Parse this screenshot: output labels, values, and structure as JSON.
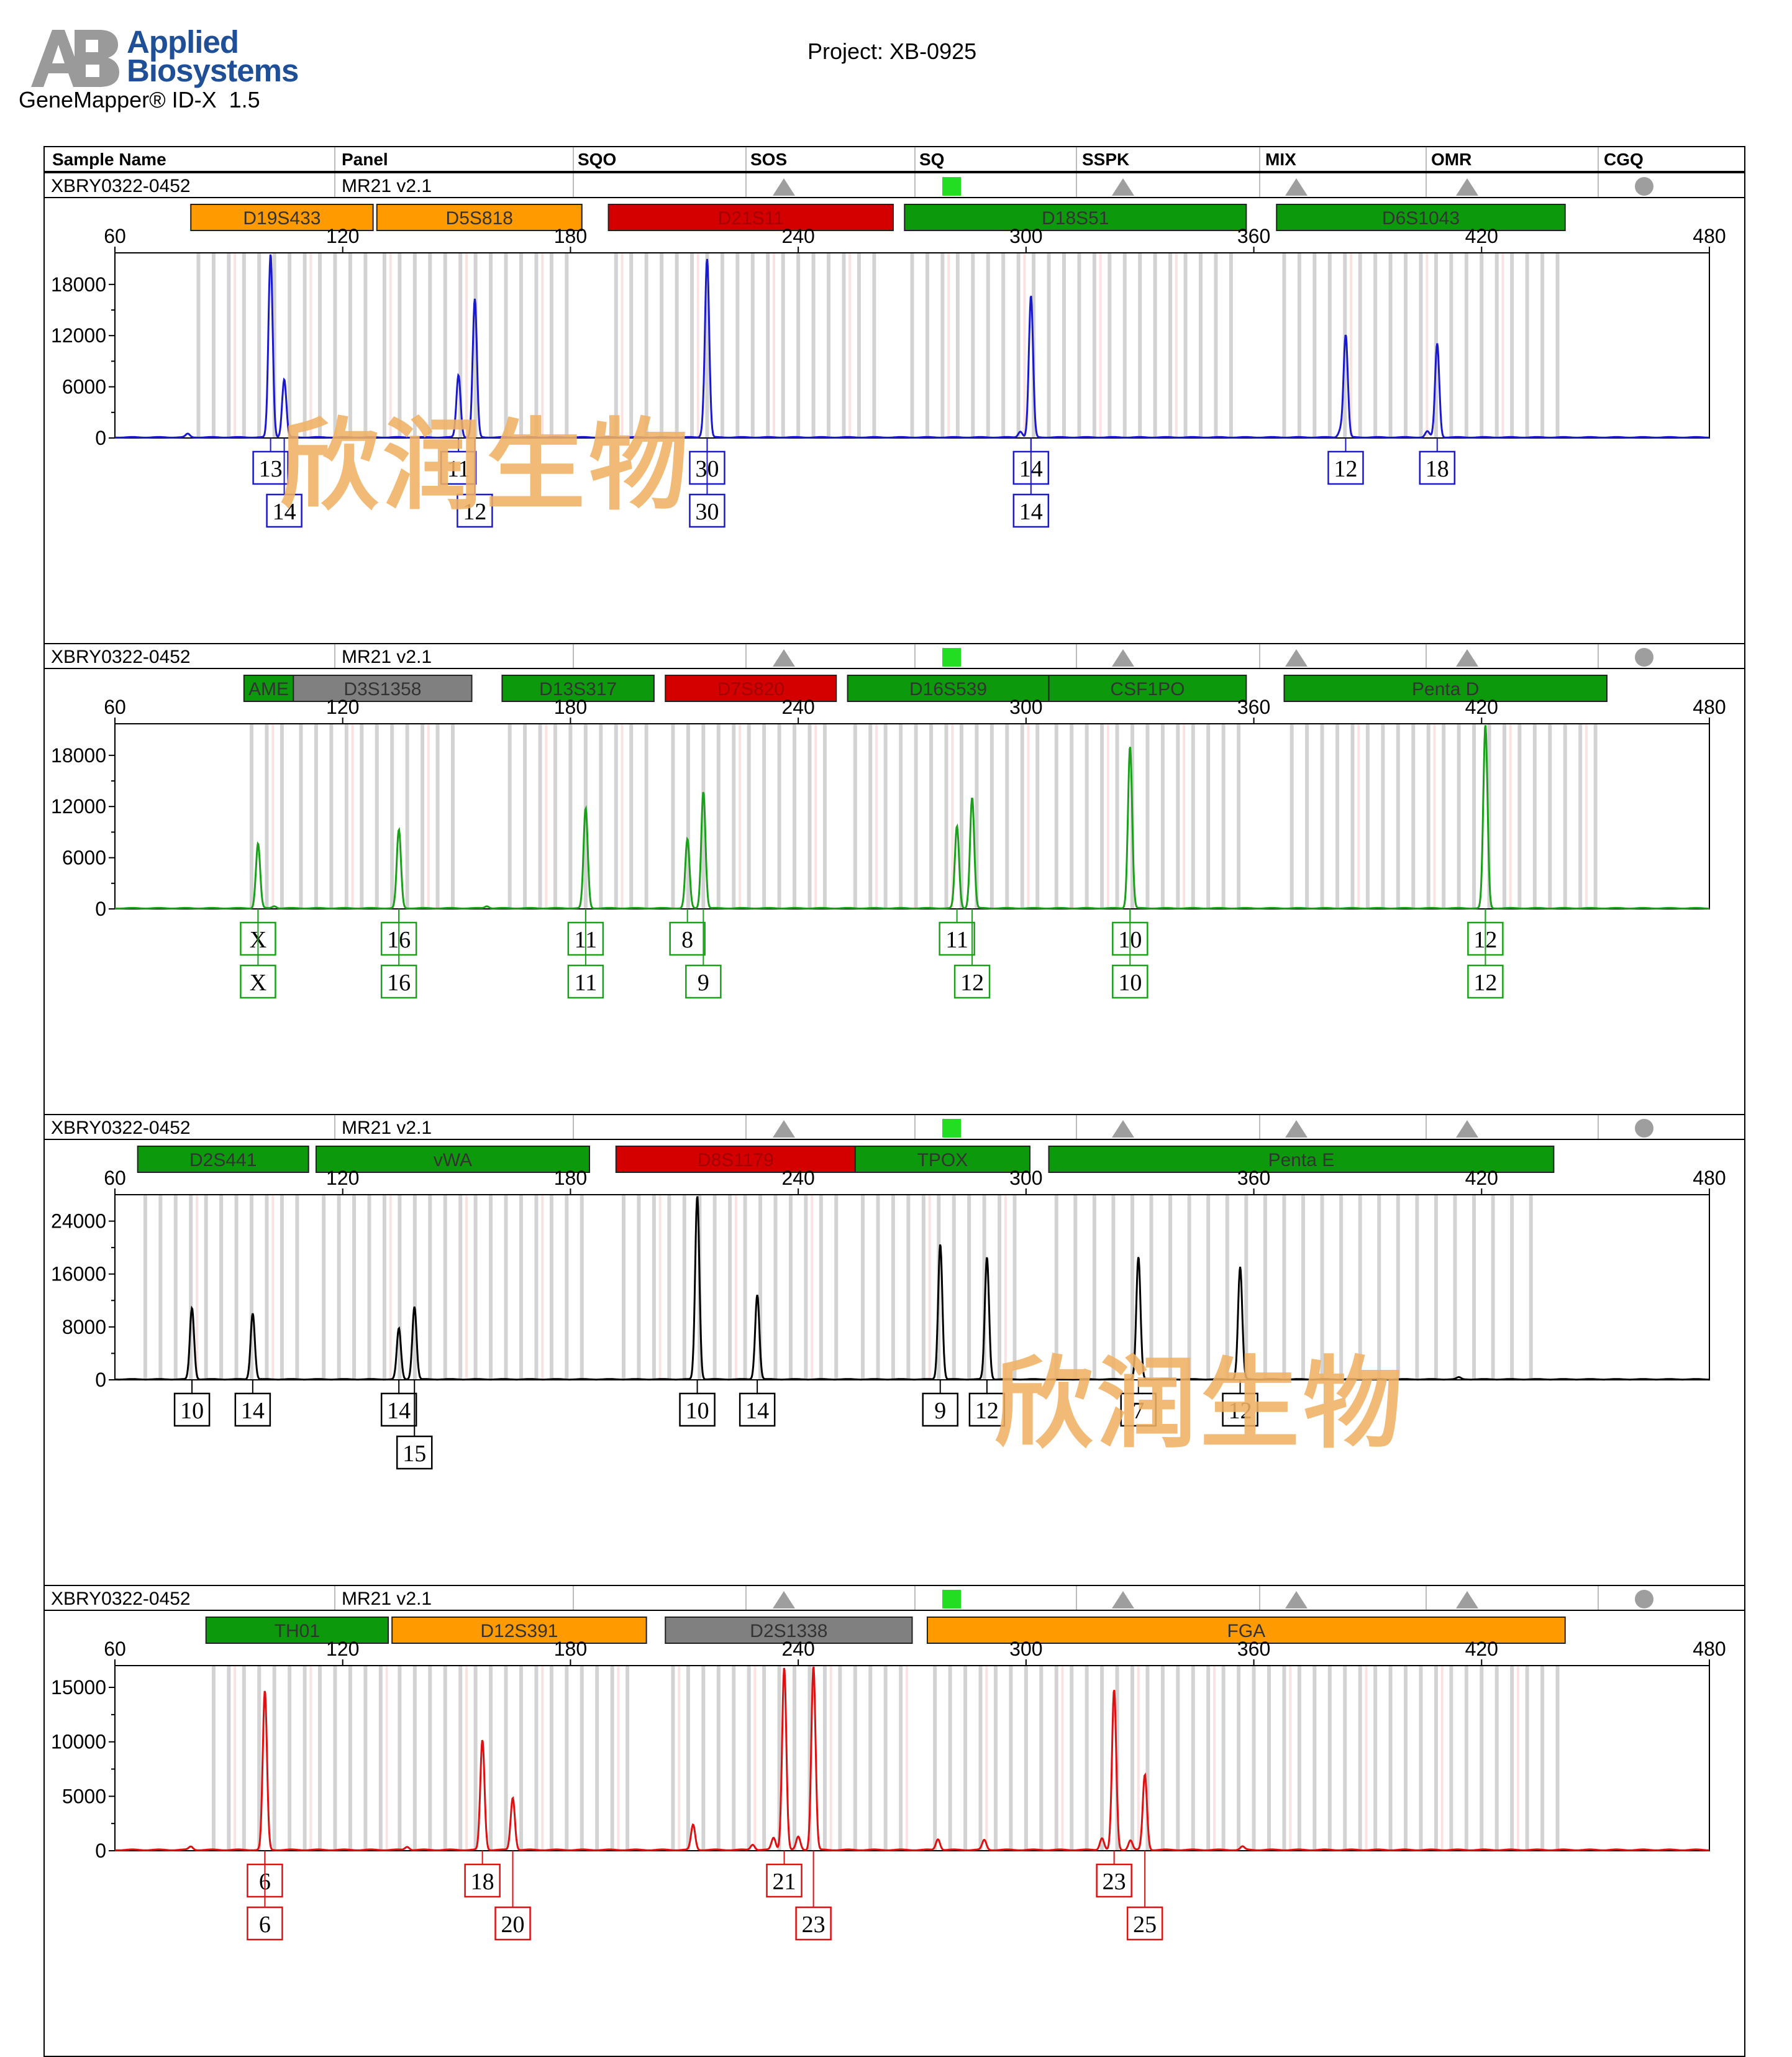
{
  "header": {
    "brand_line1": "Applied",
    "brand_line2": "Biosystems",
    "software": "GeneMapper® ID-X  1.5",
    "project": "Project: XB-0925"
  },
  "columns": [
    "Sample Name",
    "Panel",
    "SQO",
    "SOS",
    "SQ",
    "SSPK",
    "MIX",
    "OMR",
    "CGQ"
  ],
  "quality_flags": {
    "SOS": "grey-triangle",
    "SQ": "green-square",
    "SSPK": "grey-triangle",
    "MIX": "grey-triangle",
    "OMR": "grey-triangle",
    "CGQ": "grey-circle"
  },
  "watermark": "欣润生物",
  "colors": {
    "blue": "#1a1acc",
    "green": "#1aa01a",
    "black": "#000000",
    "red": "#dd1111",
    "marker_orange": "#ff9a00",
    "marker_red": "#d40000",
    "marker_green": "#0c990c",
    "marker_grey": "#808080",
    "bin_grey": "#d3d3d3",
    "bin_pink": "#fbe2e2",
    "flag_green": "#22dd22",
    "flag_grey": "#9e9e9e"
  },
  "chart_data": [
    {
      "type": "line",
      "dye": "blue",
      "sample_name": "XBRY0322-0452",
      "panel": "MR21_v2.1",
      "xlabel": "",
      "ylabel": "",
      "x_range": [
        60,
        480
      ],
      "x_ticks": [
        60,
        120,
        180,
        240,
        300,
        360,
        420,
        480
      ],
      "y_range": [
        0,
        21700
      ],
      "y_ticks": [
        0,
        6000,
        12000,
        18000
      ],
      "markers": [
        {
          "name": "D19S433",
          "color": "orange",
          "start": 80,
          "end": 128
        },
        {
          "name": "D5S818",
          "color": "orange",
          "start": 129,
          "end": 183
        },
        {
          "name": "D21S11",
          "color": "red",
          "start": 190,
          "end": 265
        },
        {
          "name": "D18S51",
          "color": "green",
          "start": 268,
          "end": 358
        },
        {
          "name": "D6S1043",
          "color": "green",
          "start": 366,
          "end": 442
        }
      ],
      "peaks": [
        {
          "x": 79.2,
          "y": 400
        },
        {
          "x": 101.0,
          "y": 21500
        },
        {
          "x": 104.6,
          "y": 6800
        },
        {
          "x": 150.5,
          "y": 7300
        },
        {
          "x": 154.8,
          "y": 16200
        },
        {
          "x": 215.2,
          "y": 1200
        },
        {
          "x": 216.0,
          "y": 20500
        },
        {
          "x": 298.5,
          "y": 700
        },
        {
          "x": 301.3,
          "y": 16600
        },
        {
          "x": 382.8,
          "y": 800
        },
        {
          "x": 384.2,
          "y": 12000
        },
        {
          "x": 405.7,
          "y": 700
        },
        {
          "x": 408.3,
          "y": 11000
        }
      ],
      "alleles": [
        {
          "label": "13",
          "x": 101.0,
          "row": 1
        },
        {
          "label": "14",
          "x": 104.6,
          "row": 2
        },
        {
          "label": "11",
          "x": 150.5,
          "row": 1
        },
        {
          "label": "12",
          "x": 154.8,
          "row": 2
        },
        {
          "label": "30",
          "x": 216.0,
          "row": 1
        },
        {
          "label": "30",
          "x": 216.0,
          "row": 2
        },
        {
          "label": "14",
          "x": 301.3,
          "row": 1
        },
        {
          "label": "14",
          "x": 301.3,
          "row": 2
        },
        {
          "label": "12",
          "x": 384.2,
          "row": 1
        },
        {
          "label": "18",
          "x": 408.3,
          "row": 1
        }
      ]
    },
    {
      "type": "line",
      "dye": "green",
      "sample_name": "XBRY0322-0452",
      "panel": "MR21_v2.1",
      "xlabel": "",
      "ylabel": "",
      "x_range": [
        60,
        480
      ],
      "x_ticks": [
        60,
        120,
        180,
        240,
        300,
        360,
        420,
        480
      ],
      "y_range": [
        0,
        21700
      ],
      "y_ticks": [
        0,
        6000,
        12000,
        18000
      ],
      "markers": [
        {
          "name": "AME",
          "color": "green",
          "start": 94,
          "end": 107
        },
        {
          "name": "D3S1358",
          "color": "grey",
          "start": 107,
          "end": 154
        },
        {
          "name": "D13S317",
          "color": "green",
          "start": 162,
          "end": 202
        },
        {
          "name": "D7S820",
          "color": "red",
          "start": 205,
          "end": 250
        },
        {
          "name": "D16S539",
          "color": "green",
          "start": 253,
          "end": 306
        },
        {
          "name": "CSF1PO",
          "color": "green",
          "start": 306,
          "end": 358
        },
        {
          "name": "Penta D",
          "color": "green",
          "start": 368,
          "end": 453
        }
      ],
      "peaks": [
        {
          "x": 97.7,
          "y": 7600
        },
        {
          "x": 102.0,
          "y": 250
        },
        {
          "x": 134.8,
          "y": 9200
        },
        {
          "x": 158.0,
          "y": 250
        },
        {
          "x": 184.0,
          "y": 11700
        },
        {
          "x": 210.8,
          "y": 8100
        },
        {
          "x": 215.0,
          "y": 13700
        },
        {
          "x": 281.8,
          "y": 9600
        },
        {
          "x": 285.8,
          "y": 13000
        },
        {
          "x": 327.4,
          "y": 19000
        },
        {
          "x": 421.0,
          "y": 21500
        }
      ],
      "alleles": [
        {
          "label": "X",
          "x": 97.7,
          "row": 1
        },
        {
          "label": "X",
          "x": 97.7,
          "row": 2
        },
        {
          "label": "16",
          "x": 134.8,
          "row": 1
        },
        {
          "label": "16",
          "x": 134.8,
          "row": 2
        },
        {
          "label": "11",
          "x": 184.0,
          "row": 1
        },
        {
          "label": "11",
          "x": 184.0,
          "row": 2
        },
        {
          "label": "8",
          "x": 210.8,
          "row": 1
        },
        {
          "label": "9",
          "x": 215.0,
          "row": 2
        },
        {
          "label": "11",
          "x": 281.8,
          "row": 1
        },
        {
          "label": "12",
          "x": 285.8,
          "row": 2
        },
        {
          "label": "10",
          "x": 327.4,
          "row": 1
        },
        {
          "label": "10",
          "x": 327.4,
          "row": 2
        },
        {
          "label": "12",
          "x": 421.0,
          "row": 1
        },
        {
          "label": "12",
          "x": 421.0,
          "row": 2
        }
      ]
    },
    {
      "type": "line",
      "dye": "black",
      "sample_name": "XBRY0322-0452",
      "panel": "MR21_v2.1",
      "xlabel": "",
      "ylabel": "",
      "x_range": [
        60,
        480
      ],
      "x_ticks": [
        60,
        120,
        180,
        240,
        300,
        360,
        420,
        480
      ],
      "y_range": [
        0,
        28000
      ],
      "y_ticks": [
        0,
        8000,
        16000,
        24000
      ],
      "markers": [
        {
          "name": "D2S441",
          "color": "green",
          "start": 66,
          "end": 111
        },
        {
          "name": "vWA",
          "color": "green",
          "start": 113,
          "end": 185
        },
        {
          "name": "D8S1179",
          "color": "red",
          "start": 192,
          "end": 255
        },
        {
          "name": "TPOX",
          "color": "green",
          "start": 255,
          "end": 301
        },
        {
          "name": "Penta E",
          "color": "green",
          "start": 306,
          "end": 439
        }
      ],
      "peaks": [
        {
          "x": 80.3,
          "y": 10800
        },
        {
          "x": 96.3,
          "y": 10000
        },
        {
          "x": 134.8,
          "y": 7700
        },
        {
          "x": 138.9,
          "y": 11000
        },
        {
          "x": 213.4,
          "y": 27800
        },
        {
          "x": 229.2,
          "y": 12800
        },
        {
          "x": 277.4,
          "y": 20500
        },
        {
          "x": 289.7,
          "y": 18500
        },
        {
          "x": 329.6,
          "y": 18500
        },
        {
          "x": 356.4,
          "y": 17000
        },
        {
          "x": 414.0,
          "y": 300
        }
      ],
      "alleles": [
        {
          "label": "10",
          "x": 80.3,
          "row": 1
        },
        {
          "label": "14",
          "x": 96.3,
          "row": 1
        },
        {
          "label": "14",
          "x": 134.8,
          "row": 1
        },
        {
          "label": "15",
          "x": 138.9,
          "row": 2
        },
        {
          "label": "10",
          "x": 213.4,
          "row": 1
        },
        {
          "label": "14",
          "x": 229.2,
          "row": 1
        },
        {
          "label": "9",
          "x": 277.4,
          "row": 1
        },
        {
          "label": "12",
          "x": 289.7,
          "row": 1
        },
        {
          "label": "7",
          "x": 329.6,
          "row": 1
        },
        {
          "label": "12",
          "x": 356.4,
          "row": 1
        }
      ]
    },
    {
      "type": "line",
      "dye": "red",
      "sample_name": "XBRY0322-0452",
      "panel": "MR21_v2.1",
      "xlabel": "",
      "ylabel": "",
      "x_range": [
        60,
        480
      ],
      "x_ticks": [
        60,
        120,
        180,
        240,
        300,
        360,
        420,
        480
      ],
      "y_range": [
        0,
        17000
      ],
      "y_ticks": [
        0,
        5000,
        10000,
        15000
      ],
      "markers": [
        {
          "name": "TH01",
          "color": "green",
          "start": 84,
          "end": 132
        },
        {
          "name": "D12S391",
          "color": "orange",
          "start": 133,
          "end": 200
        },
        {
          "name": "D2S1338",
          "color": "grey",
          "start": 205,
          "end": 270
        },
        {
          "name": "FGA",
          "color": "orange",
          "start": 274,
          "end": 442
        }
      ],
      "peaks": [
        {
          "x": 80.0,
          "y": 300
        },
        {
          "x": 99.5,
          "y": 14600
        },
        {
          "x": 137.0,
          "y": 300
        },
        {
          "x": 156.8,
          "y": 10100
        },
        {
          "x": 164.8,
          "y": 4800
        },
        {
          "x": 212.3,
          "y": 2300
        },
        {
          "x": 228.0,
          "y": 500
        },
        {
          "x": 233.5,
          "y": 1100
        },
        {
          "x": 236.3,
          "y": 16800
        },
        {
          "x": 240.0,
          "y": 1200
        },
        {
          "x": 244.0,
          "y": 16900
        },
        {
          "x": 276.8,
          "y": 1000
        },
        {
          "x": 289.0,
          "y": 900
        },
        {
          "x": 320.0,
          "y": 1100
        },
        {
          "x": 323.2,
          "y": 14700
        },
        {
          "x": 327.5,
          "y": 900
        },
        {
          "x": 331.3,
          "y": 6900
        },
        {
          "x": 357.0,
          "y": 300
        }
      ],
      "alleles": [
        {
          "label": "6",
          "x": 99.5,
          "row": 1
        },
        {
          "label": "6",
          "x": 99.5,
          "row": 2
        },
        {
          "label": "18",
          "x": 156.8,
          "row": 1
        },
        {
          "label": "20",
          "x": 164.8,
          "row": 2
        },
        {
          "label": "21",
          "x": 236.3,
          "row": 1
        },
        {
          "label": "23",
          "x": 244.0,
          "row": 2
        },
        {
          "label": "23",
          "x": 323.2,
          "row": 1
        },
        {
          "label": "25",
          "x": 331.3,
          "row": 2
        }
      ]
    }
  ]
}
